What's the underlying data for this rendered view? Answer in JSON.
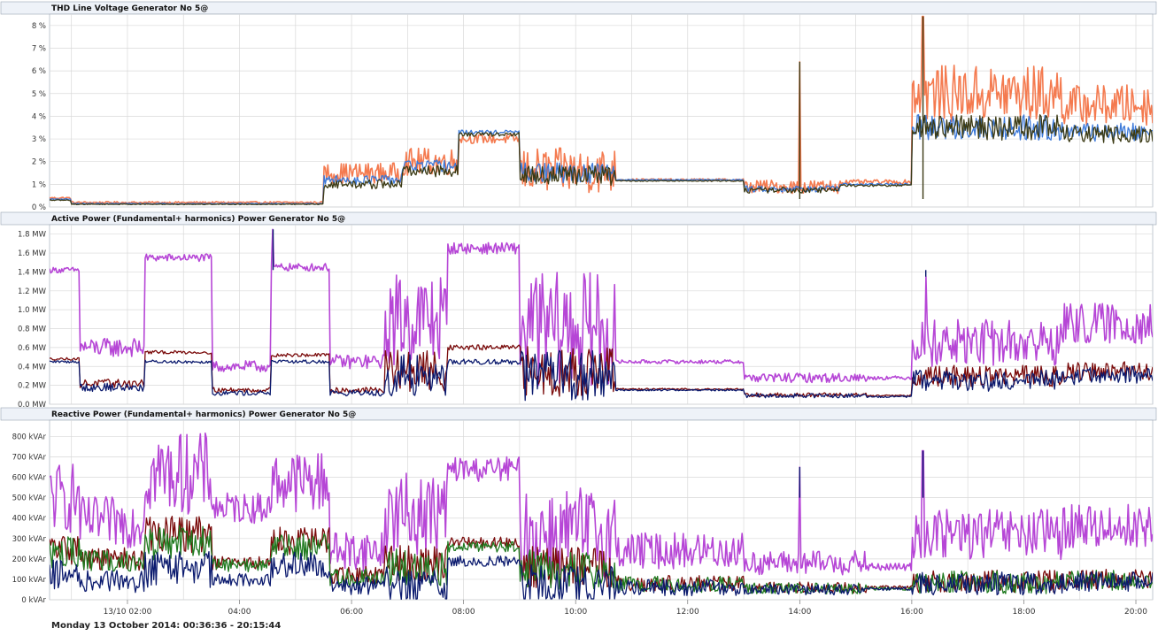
{
  "footer": {
    "date_range": "Monday 13 October 2014: 00:36:36 - 20:15:44"
  },
  "time_axis": {
    "start_hour": 0.61,
    "end_hour": 20.3,
    "tick_labels": [
      "13/10 02:00",
      "04:00",
      "06:00",
      "08:00",
      "10:00",
      "12:00",
      "14:00",
      "16:00",
      "18:00",
      "20:00"
    ],
    "tick_hours": [
      2,
      4,
      6,
      8,
      10,
      12,
      14,
      16,
      18,
      20
    ]
  },
  "colors": {
    "grid": "#d9d9d9",
    "panel_header": "#eef2f8",
    "border": "#9aa4b2",
    "thd_orange": "#f47a4f",
    "thd_blue": "#3b78d8",
    "thd_dark": "#3b3a14",
    "magenta": "#b646d6",
    "dark_red": "#7a0b0b",
    "green": "#1f7a1f",
    "navy": "#0b1a6e"
  },
  "chart_data": [
    {
      "type": "line",
      "title": "THD Line Voltage Generator No 5@",
      "unit": "%",
      "ylim": [
        0,
        8.5
      ],
      "yticks": [
        0,
        1,
        2,
        3,
        4,
        5,
        6,
        7,
        8
      ],
      "ytick_labels": [
        "0 %",
        "1 %",
        "2 %",
        "3 %",
        "4 %",
        "5 %",
        "6 %",
        "7 %",
        "8 %"
      ],
      "grid": true,
      "series_colors": [
        "thd_orange",
        "thd_blue",
        "thd_dark"
      ],
      "segments": [
        {
          "from": 0.61,
          "to": 1.0,
          "level": 0.35,
          "series_levels": [
            0.4,
            0.35,
            0.3
          ],
          "noise": 0.08
        },
        {
          "from": 1.0,
          "to": 5.5,
          "level": 0.15,
          "series_levels": [
            0.2,
            0.15,
            0.12
          ],
          "noise": 0.08
        },
        {
          "from": 5.5,
          "to": 6.9,
          "level": 1.1,
          "series_levels": [
            1.5,
            1.2,
            1.0
          ],
          "noise": 0.9
        },
        {
          "from": 6.9,
          "to": 7.9,
          "level": 1.8,
          "series_levels": [
            2.0,
            1.8,
            1.6
          ],
          "noise": 1.2
        },
        {
          "from": 7.9,
          "to": 9.0,
          "level": 3.2,
          "series_levels": [
            3.0,
            3.3,
            3.2
          ],
          "noise": 0.4
        },
        {
          "from": 9.0,
          "to": 10.7,
          "level": 1.5,
          "series_levels": [
            1.6,
            1.5,
            1.4
          ],
          "noise": 2.0
        },
        {
          "from": 10.7,
          "to": 13.0,
          "level": 1.2,
          "series_levels": [
            1.2,
            1.2,
            1.15
          ],
          "noise": 0.1
        },
        {
          "from": 13.0,
          "to": 14.7,
          "level": 0.8,
          "series_levels": [
            0.9,
            0.8,
            0.75
          ],
          "noise": 0.6
        },
        {
          "from": 14.7,
          "to": 16.0,
          "level": 1.0,
          "series_levels": [
            1.1,
            1.0,
            0.95
          ],
          "noise": 0.2
        },
        {
          "from": 16.0,
          "to": 18.7,
          "level": 4.0,
          "series_levels": [
            5.0,
            3.5,
            3.5
          ],
          "noise": 2.5
        },
        {
          "from": 18.7,
          "to": 20.3,
          "level": 3.5,
          "series_levels": [
            4.5,
            3.3,
            3.2
          ],
          "noise": 1.8
        }
      ],
      "peaks": [
        {
          "x": 14.0,
          "y": 6.4
        },
        {
          "x": 16.2,
          "y": 8.4
        }
      ]
    },
    {
      "type": "line",
      "title": "Active Power  (Fundamental+ harmonics) Power Generator No 5@",
      "unit": "MW",
      "ylim": [
        0,
        1.9
      ],
      "yticks": [
        0,
        0.2,
        0.4,
        0.6,
        0.8,
        1.0,
        1.2,
        1.4,
        1.6,
        1.8
      ],
      "ytick_labels": [
        "0.0 MW",
        "0.2 MW",
        "0.4 MW",
        "0.6 MW",
        "0.8 MW",
        "1.0 MW",
        "1.2 MW",
        "1.4 MW",
        "1.6 MW",
        "1.8 MW"
      ],
      "grid": true,
      "series_colors": [
        "magenta",
        "dark_red",
        "navy"
      ],
      "segments": [
        {
          "from": 0.61,
          "to": 1.15,
          "level": 1.42,
          "series_levels": [
            1.42,
            0.48,
            0.45
          ],
          "noise": 0.06
        },
        {
          "from": 1.15,
          "to": 2.3,
          "level": 0.6,
          "series_levels": [
            0.6,
            0.22,
            0.18
          ],
          "noise": 0.2
        },
        {
          "from": 2.3,
          "to": 3.5,
          "level": 1.55,
          "series_levels": [
            1.55,
            0.55,
            0.45
          ],
          "noise": 0.08
        },
        {
          "from": 3.5,
          "to": 4.55,
          "level": 0.4,
          "series_levels": [
            0.4,
            0.15,
            0.12
          ],
          "noise": 0.12
        },
        {
          "from": 4.55,
          "to": 5.6,
          "level": 1.45,
          "series_levels": [
            1.45,
            0.52,
            0.45
          ],
          "noise": 0.08
        },
        {
          "from": 5.6,
          "to": 6.6,
          "level": 0.45,
          "series_levels": [
            0.45,
            0.15,
            0.12
          ],
          "noise": 0.15
        },
        {
          "from": 6.6,
          "to": 7.7,
          "level": 0.9,
          "series_levels": [
            0.9,
            0.35,
            0.3
          ],
          "noise": 1.0
        },
        {
          "from": 7.7,
          "to": 9.0,
          "level": 1.6,
          "series_levels": [
            1.65,
            0.6,
            0.45
          ],
          "noise": 0.12
        },
        {
          "from": 9.0,
          "to": 10.7,
          "level": 0.8,
          "series_levels": [
            0.8,
            0.35,
            0.3
          ],
          "noise": 1.2
        },
        {
          "from": 10.7,
          "to": 13.0,
          "level": 0.45,
          "series_levels": [
            0.45,
            0.16,
            0.15
          ],
          "noise": 0.04
        },
        {
          "from": 13.0,
          "to": 15.2,
          "level": 0.3,
          "series_levels": [
            0.28,
            0.1,
            0.09
          ],
          "noise": 0.1
        },
        {
          "from": 15.2,
          "to": 16.0,
          "level": 0.28,
          "series_levels": [
            0.28,
            0.09,
            0.08
          ],
          "noise": 0.04
        },
        {
          "from": 16.0,
          "to": 18.7,
          "level": 0.65,
          "series_levels": [
            0.65,
            0.3,
            0.25
          ],
          "noise": 0.5
        },
        {
          "from": 18.7,
          "to": 20.3,
          "level": 0.85,
          "series_levels": [
            0.85,
            0.35,
            0.3
          ],
          "noise": 0.45
        }
      ],
      "peaks": [
        {
          "x": 4.6,
          "y": 1.85
        },
        {
          "x": 16.25,
          "y": 1.35
        }
      ]
    },
    {
      "type": "line",
      "title": "Reactive Power (Fundamental+ harmonics) Power Generator No 5@",
      "unit": "kVAr",
      "ylim": [
        0,
        880
      ],
      "yticks": [
        0,
        100,
        200,
        300,
        400,
        500,
        600,
        700,
        800
      ],
      "ytick_labels": [
        "0 kVAr",
        "100 kVAr",
        "200 kVAr",
        "300 kVAr",
        "400 kVAr",
        "500 kVAr",
        "600 kVAr",
        "700 kVAr",
        "800 kVAr"
      ],
      "grid": true,
      "series_colors": [
        "magenta",
        "dark_red",
        "green",
        "navy"
      ],
      "segments": [
        {
          "from": 0.61,
          "to": 1.15,
          "level": 500,
          "series_levels": [
            500,
            250,
            230,
            120
          ],
          "noise": 350
        },
        {
          "from": 1.15,
          "to": 2.3,
          "level": 380,
          "series_levels": [
            380,
            200,
            190,
            90
          ],
          "noise": 250
        },
        {
          "from": 2.3,
          "to": 3.5,
          "level": 620,
          "series_levels": [
            620,
            320,
            280,
            150
          ],
          "noise": 400
        },
        {
          "from": 3.5,
          "to": 4.55,
          "level": 450,
          "series_levels": [
            450,
            180,
            170,
            100
          ],
          "noise": 150
        },
        {
          "from": 4.55,
          "to": 5.6,
          "level": 580,
          "series_levels": [
            580,
            290,
            260,
            170
          ],
          "noise": 300
        },
        {
          "from": 5.6,
          "to": 6.6,
          "level": 240,
          "series_levels": [
            240,
            120,
            110,
            70
          ],
          "noise": 200
        },
        {
          "from": 6.6,
          "to": 7.7,
          "level": 420,
          "series_levels": [
            420,
            180,
            160,
            70
          ],
          "noise": 400
        },
        {
          "from": 7.7,
          "to": 9.0,
          "level": 640,
          "series_levels": [
            640,
            280,
            260,
            190
          ],
          "noise": 120
        },
        {
          "from": 9.0,
          "to": 10.7,
          "level": 330,
          "series_levels": [
            330,
            160,
            150,
            70
          ],
          "noise": 450
        },
        {
          "from": 10.7,
          "to": 13.0,
          "level": 240,
          "series_levels": [
            240,
            80,
            75,
            60
          ],
          "noise": 180
        },
        {
          "from": 13.0,
          "to": 15.2,
          "level": 180,
          "series_levels": [
            180,
            60,
            55,
            50
          ],
          "noise": 120
        },
        {
          "from": 15.2,
          "to": 16.0,
          "level": 160,
          "series_levels": [
            160,
            60,
            55,
            55
          ],
          "noise": 40
        },
        {
          "from": 16.0,
          "to": 18.7,
          "level": 320,
          "series_levels": [
            320,
            90,
            85,
            80
          ],
          "noise": 250
        },
        {
          "from": 18.7,
          "to": 20.3,
          "level": 360,
          "series_levels": [
            360,
            100,
            95,
            90
          ],
          "noise": 220
        }
      ],
      "peaks": [
        {
          "x": 14.0,
          "y": 650
        },
        {
          "x": 16.2,
          "y": 730
        }
      ]
    }
  ]
}
